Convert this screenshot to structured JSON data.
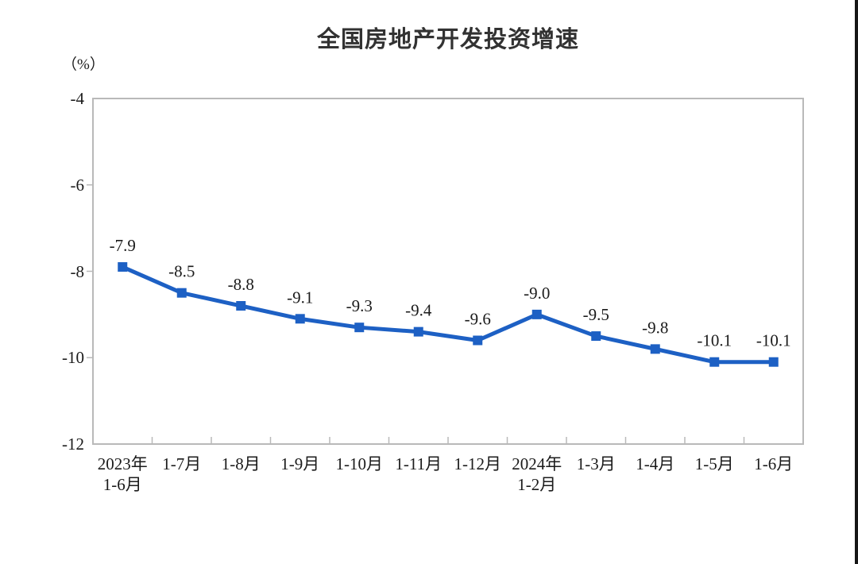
{
  "chart_data": {
    "type": "line",
    "title": "全国房地产开发投资增速",
    "unit_label": "（%）",
    "categories": [
      [
        "2023年",
        "1-6月"
      ],
      [
        "1-7月"
      ],
      [
        "1-8月"
      ],
      [
        "1-9月"
      ],
      [
        "1-10月"
      ],
      [
        "1-11月"
      ],
      [
        "1-12月"
      ],
      [
        "2024年",
        "1-2月"
      ],
      [
        "1-3月"
      ],
      [
        "1-4月"
      ],
      [
        "1-5月"
      ],
      [
        "1-6月"
      ]
    ],
    "values": [
      -7.9,
      -8.5,
      -8.8,
      -9.1,
      -9.3,
      -9.4,
      -9.6,
      -9.0,
      -9.5,
      -9.8,
      -10.1,
      -10.1
    ],
    "data_labels": [
      "-7.9",
      "-8.5",
      "-8.8",
      "-9.1",
      "-9.3",
      "-9.4",
      "-9.6",
      "-9.0",
      "-9.5",
      "-9.8",
      "-10.1",
      "-10.1"
    ],
    "ylim": [
      -12,
      -4
    ],
    "y_tick_values": [
      -4,
      -6,
      -8,
      -10,
      -12
    ],
    "y_tick_labels": [
      "-4",
      "-6",
      "-8",
      "-10",
      "-12"
    ],
    "xlabel": "",
    "ylabel": "（%）",
    "grid": false,
    "legend": "none",
    "marker": "square",
    "line_color": "#1d60c4",
    "axis_color": "#b9b9b9",
    "text_color": "#1b1b1b"
  }
}
